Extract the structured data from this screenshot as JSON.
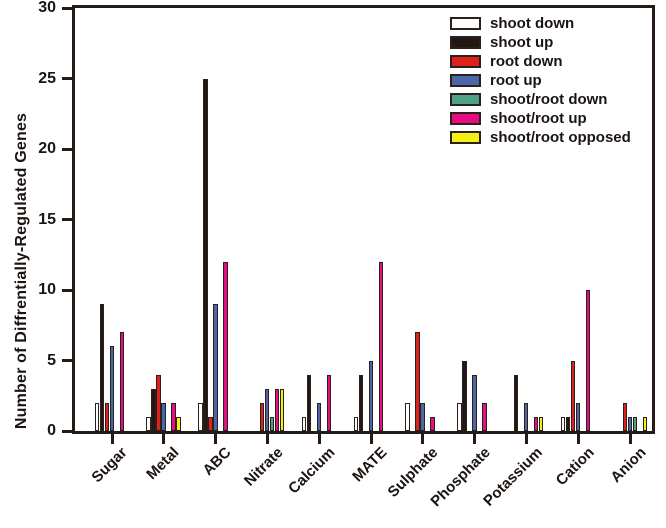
{
  "figure": {
    "background": "#ffffff",
    "text_color": "#1c1410",
    "axis_color": "#241b16"
  },
  "chart_data": {
    "type": "bar",
    "title": "",
    "xlabel": "",
    "ylabel": "Number of Diffrentially-Regulated Genes",
    "ylim": [
      0,
      30
    ],
    "yticks": [
      0,
      5,
      10,
      15,
      20,
      25,
      30
    ],
    "grid": false,
    "legend_position": "top-right",
    "bar_outline_color": "#2a211c",
    "categories": [
      "Sugar",
      "Metal",
      "ABC",
      "Nitrate",
      "Calcium",
      "MATE",
      "Sulphate",
      "Phosphate",
      "Potassium",
      "Cation",
      "Anion"
    ],
    "series": [
      {
        "name": "shoot down",
        "color": "#ffffff",
        "values": [
          2,
          1,
          2,
          0,
          1,
          1,
          2,
          2,
          0,
          1,
          0
        ]
      },
      {
        "name": "shoot up",
        "color": "#221713",
        "values": [
          9,
          3,
          25,
          0,
          4,
          4,
          0,
          5,
          4,
          1,
          0
        ]
      },
      {
        "name": "root down",
        "color": "#de211b",
        "values": [
          2,
          4,
          1,
          2,
          0,
          0,
          7,
          0,
          0,
          5,
          2
        ]
      },
      {
        "name": "root up",
        "color": "#4d65a9",
        "values": [
          6,
          2,
          9,
          3,
          2,
          5,
          2,
          4,
          2,
          2,
          1
        ]
      },
      {
        "name": "shoot/root down",
        "color": "#4da285",
        "values": [
          0,
          0,
          0,
          1,
          0,
          0,
          0,
          0,
          0,
          0,
          1
        ]
      },
      {
        "name": "shoot/root up",
        "color": "#e60d83",
        "values": [
          7,
          2,
          12,
          3,
          4,
          12,
          1,
          2,
          1,
          10,
          0
        ]
      },
      {
        "name": "shoot/root opposed",
        "color": "#f4ef15",
        "values": [
          0,
          1,
          0,
          3,
          0,
          0,
          0,
          0,
          1,
          0,
          1
        ]
      }
    ]
  }
}
